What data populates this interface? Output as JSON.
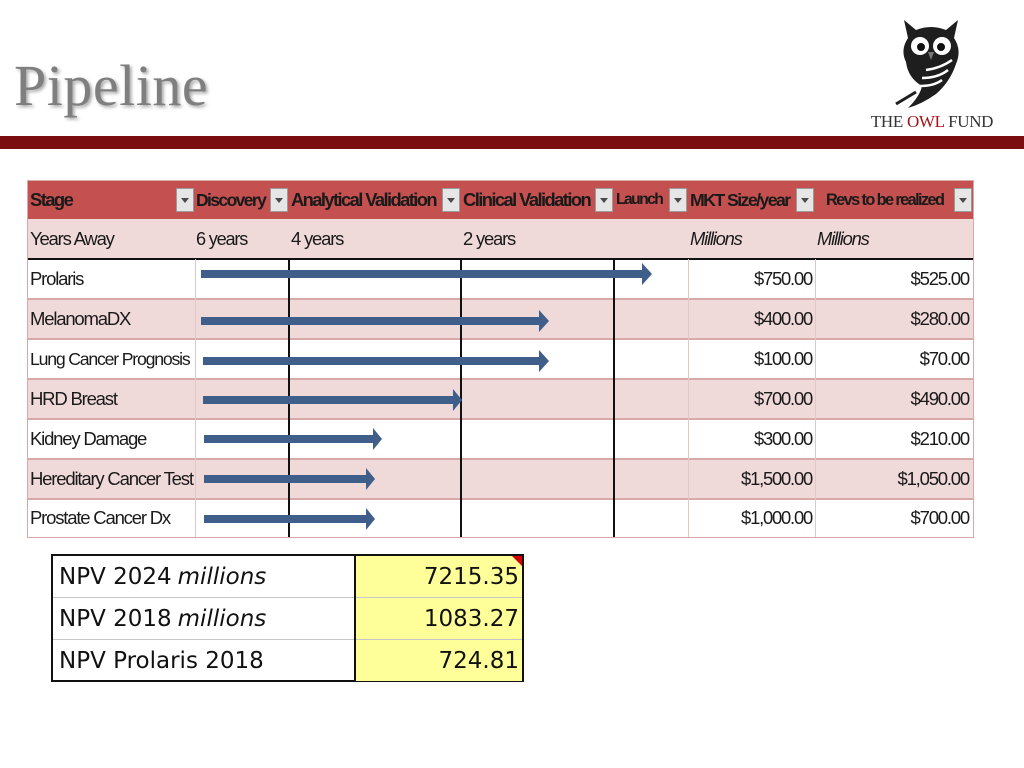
{
  "slide": {
    "title": "Pipeline"
  },
  "logo": {
    "text_the": "THE ",
    "text_owl": "OWL",
    "text_fund": " FUND"
  },
  "pipeline": {
    "headers": [
      "Stage",
      "Discovery",
      "Analytical Validation",
      "Clinical Validation",
      "Launch",
      "MKT Size/year",
      "Revs to be realized"
    ],
    "subheader": [
      "Years Away",
      "6 years",
      "4 years",
      "2 years",
      "",
      "Millions",
      "Millions"
    ],
    "rows": [
      {
        "name": "Prolaris",
        "stage_reached": "Launch",
        "mkt_size": "$750.00",
        "revs": "$525.00"
      },
      {
        "name": "MelanomaDX",
        "stage_reached": "Clinical Validation",
        "mkt_size": "$400.00",
        "revs": "$280.00"
      },
      {
        "name": "Lung Cancer Prognosis",
        "stage_reached": "Clinical Validation",
        "mkt_size": "$100.00",
        "revs": "$70.00"
      },
      {
        "name": "HRD Breast",
        "stage_reached": "Analytical Validation",
        "mkt_size": "$700.00",
        "revs": "$490.00"
      },
      {
        "name": "Kidney Damage",
        "stage_reached": "Analytical Validation (partial)",
        "mkt_size": "$300.00",
        "revs": "$210.00"
      },
      {
        "name": "Hereditary Cancer Test",
        "stage_reached": "Analytical Validation (partial)",
        "mkt_size": "$1,500.00",
        "revs": "$1,050.00"
      },
      {
        "name": "Prostate Cancer Dx",
        "stage_reached": "Analytical Validation (partial)",
        "mkt_size": "$1,000.00",
        "revs": "$700.00"
      }
    ],
    "arrow_color": "#3f5f8a"
  },
  "npv": {
    "rows": [
      {
        "label": "NPV 2024",
        "italic": "millions",
        "value": "7215.35"
      },
      {
        "label": "NPV 2018",
        "italic": "millions",
        "value": "1083.27"
      },
      {
        "label": "NPV Prolaris 2018",
        "italic": "",
        "value": "724.81"
      }
    ]
  },
  "colors": {
    "brand_rule": "#7a0d0f",
    "header_fill": "#c55050",
    "band_fill": "#f0d9d9",
    "npv_fill": "#ffff99"
  }
}
